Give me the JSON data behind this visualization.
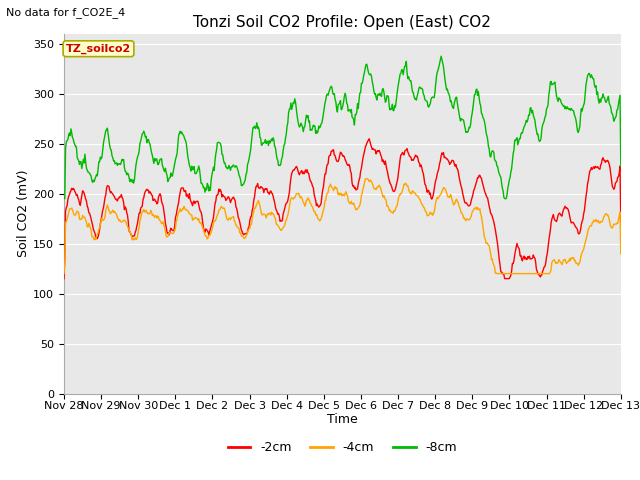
{
  "title": "Tonzi Soil CO2 Profile: Open (East) CO2",
  "no_data_text": "No data for f_CO2E_4",
  "ylabel": "Soil CO2 (mV)",
  "xlabel": "Time",
  "box_label": "TZ_soilco2",
  "legend": [
    "-2cm",
    "-4cm",
    "-8cm"
  ],
  "legend_colors": [
    "#ff0000",
    "#ffa500",
    "#00bb00"
  ],
  "ylim": [
    0,
    360
  ],
  "yticks": [
    0,
    50,
    100,
    150,
    200,
    250,
    300,
    350
  ],
  "xtick_labels": [
    "Nov 28",
    "Nov 29",
    "Nov 30",
    "Dec 1",
    "Dec 2",
    "Dec 3",
    "Dec 4",
    "Dec 5",
    "Dec 6",
    "Dec 7",
    "Dec 8",
    "Dec 9",
    "Dec 10",
    "Dec 11",
    "Dec 12",
    "Dec 13"
  ],
  "plot_bg_color": "#e8e8e8",
  "title_fontsize": 11,
  "axis_fontsize": 9,
  "tick_fontsize": 8,
  "legend_fontsize": 9,
  "line_width": 1.0
}
